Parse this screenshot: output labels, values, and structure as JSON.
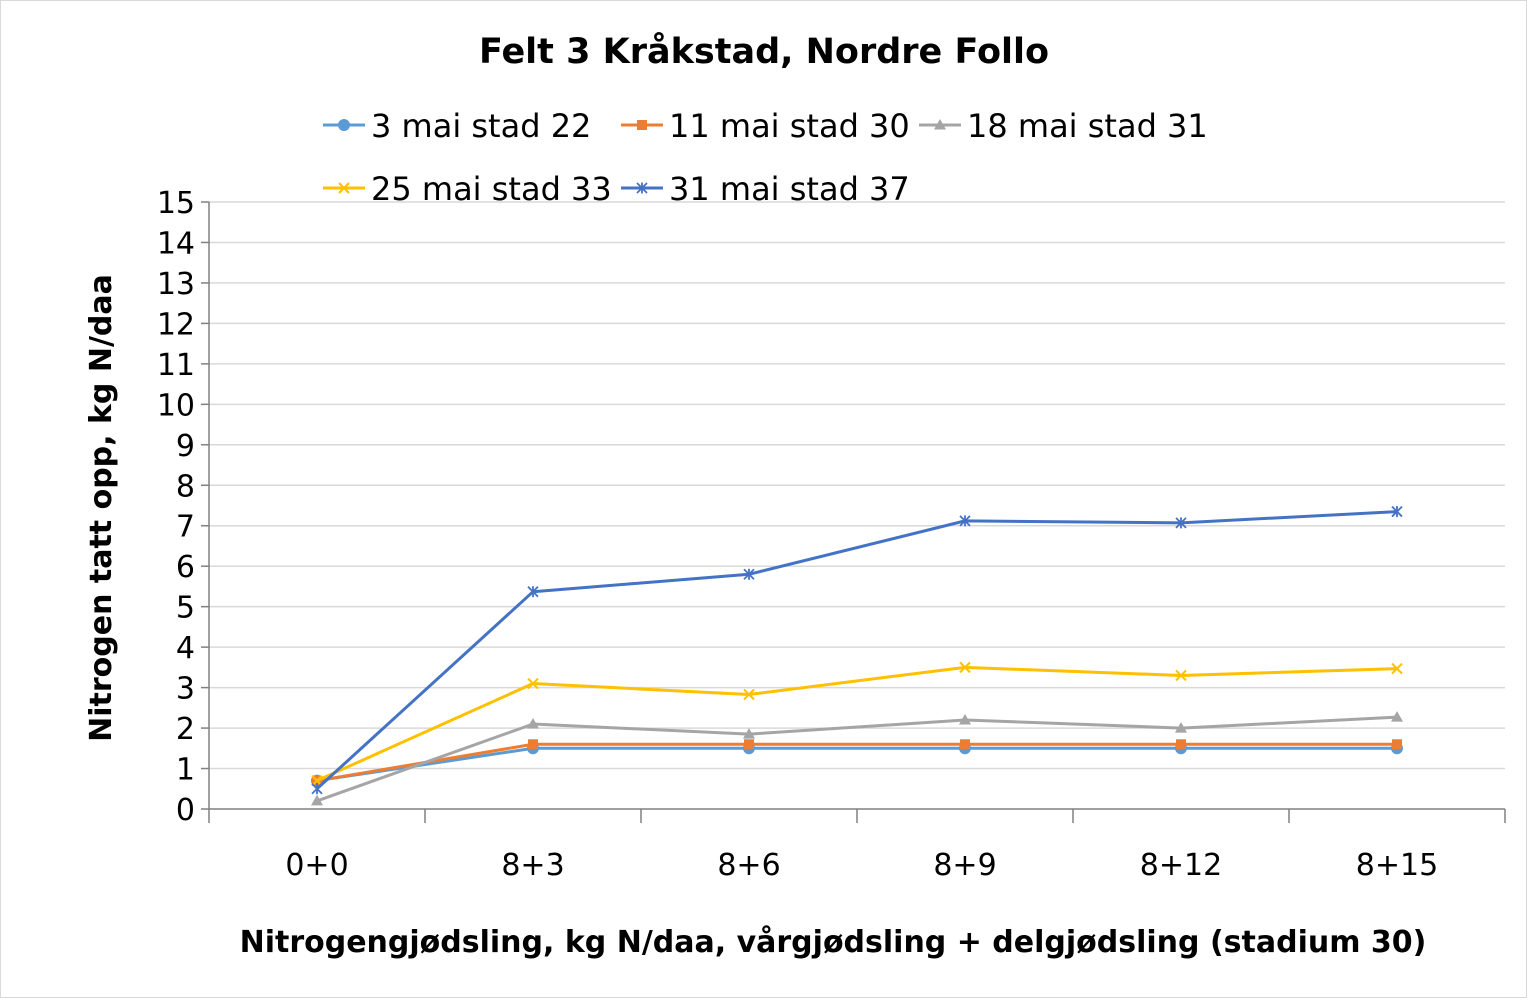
{
  "chart_data": {
    "type": "line",
    "title": "Felt 3 Kråkstad, Nordre Follo",
    "xlabel": "Nitrogengjødsling, kg N/daa, vårgjødsling + delgjødsling (stadium 30)",
    "ylabel": "Nitrogen tatt opp, kg N/daa",
    "ylim": [
      0,
      15
    ],
    "yticks": [
      0,
      1,
      2,
      3,
      4,
      5,
      6,
      7,
      8,
      9,
      10,
      11,
      12,
      13,
      14,
      15
    ],
    "grid": true,
    "legend_position": "top",
    "categories": [
      "0+0",
      "8+3",
      "8+6",
      "8+9",
      "8+12",
      "8+15"
    ],
    "series": [
      {
        "name": "3 mai stad 22",
        "color": "#5b9bd5",
        "marker": "circle",
        "values": [
          0.7,
          1.5,
          1.5,
          1.5,
          1.5,
          1.5
        ]
      },
      {
        "name": "11 mai stad 30",
        "color": "#ed7d31",
        "marker": "square",
        "values": [
          0.7,
          1.6,
          1.6,
          1.6,
          1.6,
          1.6
        ]
      },
      {
        "name": "18 mai stad 31",
        "color": "#a5a5a5",
        "marker": "triangle",
        "values": [
          0.2,
          2.1,
          1.85,
          2.2,
          2.0,
          2.27
        ]
      },
      {
        "name": "25 mai stad 33",
        "color": "#ffc000",
        "marker": "x",
        "values": [
          0.7,
          3.1,
          2.83,
          3.5,
          3.3,
          3.47
        ]
      },
      {
        "name": "31 mai stad 37",
        "color": "#4472c4",
        "marker": "star",
        "values": [
          0.5,
          5.37,
          5.8,
          7.12,
          7.07,
          7.35
        ]
      }
    ]
  }
}
